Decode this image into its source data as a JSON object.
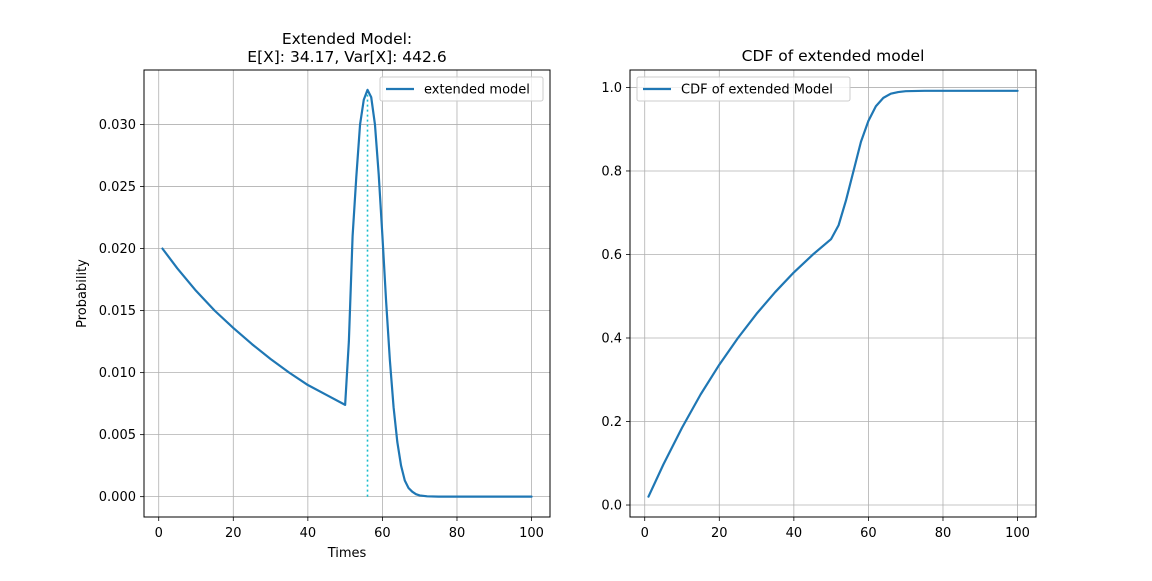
{
  "chart_data": [
    {
      "type": "line",
      "title_line1": "Extended Model:",
      "title_line2": "E[X]: 34.17, Var[X]: 442.6",
      "xlabel": "Times",
      "ylabel": "Probability",
      "xlim": [
        -3.95,
        104.95
      ],
      "ylim": [
        -0.00164,
        0.0344
      ],
      "xticks": [
        0,
        20,
        40,
        60,
        80,
        100
      ],
      "yticks": [
        0.0,
        0.005,
        0.01,
        0.015,
        0.02,
        0.025,
        0.03
      ],
      "xtick_labels": [
        "0",
        "20",
        "40",
        "60",
        "80",
        "100"
      ],
      "ytick_labels": [
        "0.000",
        "0.005",
        "0.010",
        "0.015",
        "0.020",
        "0.025",
        "0.030"
      ],
      "grid": true,
      "legend_position": "upper right",
      "series": [
        {
          "name": "extended model",
          "color": "#1f77b4",
          "x": [
            1,
            5,
            10,
            15,
            20,
            25,
            30,
            35,
            40,
            45,
            50,
            51,
            52,
            53,
            54,
            55,
            56,
            57,
            58,
            59,
            60,
            61,
            62,
            63,
            64,
            65,
            66,
            67,
            68,
            69,
            70,
            72,
            75,
            80,
            90,
            100
          ],
          "y": [
            0.02,
            0.0184,
            0.0166,
            0.015,
            0.0136,
            0.0123,
            0.0111,
            0.01,
            0.009,
            0.0082,
            0.0074,
            0.0125,
            0.021,
            0.0258,
            0.03,
            0.032,
            0.0328,
            0.0322,
            0.03,
            0.026,
            0.021,
            0.0157,
            0.011,
            0.0072,
            0.0044,
            0.0025,
            0.0013,
            0.0007,
            0.0004,
            0.0002,
            0.0001,
            3e-05,
            0.0,
            0.0,
            0.0,
            0.0
          ]
        }
      ],
      "annotations": [
        {
          "type": "vline",
          "x": 56,
          "y_from": 0,
          "y_to": 0.0328,
          "color": "#17becf",
          "style": "dotted"
        }
      ]
    },
    {
      "type": "line",
      "title": "CDF of extended model",
      "xlabel": "",
      "ylabel": "",
      "xlim": [
        -3.95,
        104.95
      ],
      "ylim": [
        -0.0287,
        1.0418
      ],
      "xticks": [
        0,
        20,
        40,
        60,
        80,
        100
      ],
      "yticks": [
        0.0,
        0.2,
        0.4,
        0.6,
        0.8,
        1.0
      ],
      "xtick_labels": [
        "0",
        "20",
        "40",
        "60",
        "80",
        "100"
      ],
      "ytick_labels": [
        "0.0",
        "0.2",
        "0.4",
        "0.6",
        "0.8",
        "1.0"
      ],
      "grid": true,
      "legend_position": "upper left",
      "series": [
        {
          "name": "CDF of extended Model",
          "color": "#1f77b4",
          "x": [
            1,
            5,
            10,
            15,
            20,
            25,
            30,
            35,
            40,
            45,
            50,
            52,
            54,
            56,
            58,
            60,
            62,
            64,
            66,
            68,
            70,
            75,
            80,
            90,
            100
          ],
          "y": [
            0.02,
            0.097,
            0.185,
            0.265,
            0.336,
            0.4,
            0.458,
            0.51,
            0.557,
            0.599,
            0.637,
            0.67,
            0.73,
            0.8,
            0.87,
            0.92,
            0.955,
            0.975,
            0.985,
            0.989,
            0.991,
            0.992,
            0.992,
            0.992,
            0.992
          ]
        }
      ]
    }
  ]
}
